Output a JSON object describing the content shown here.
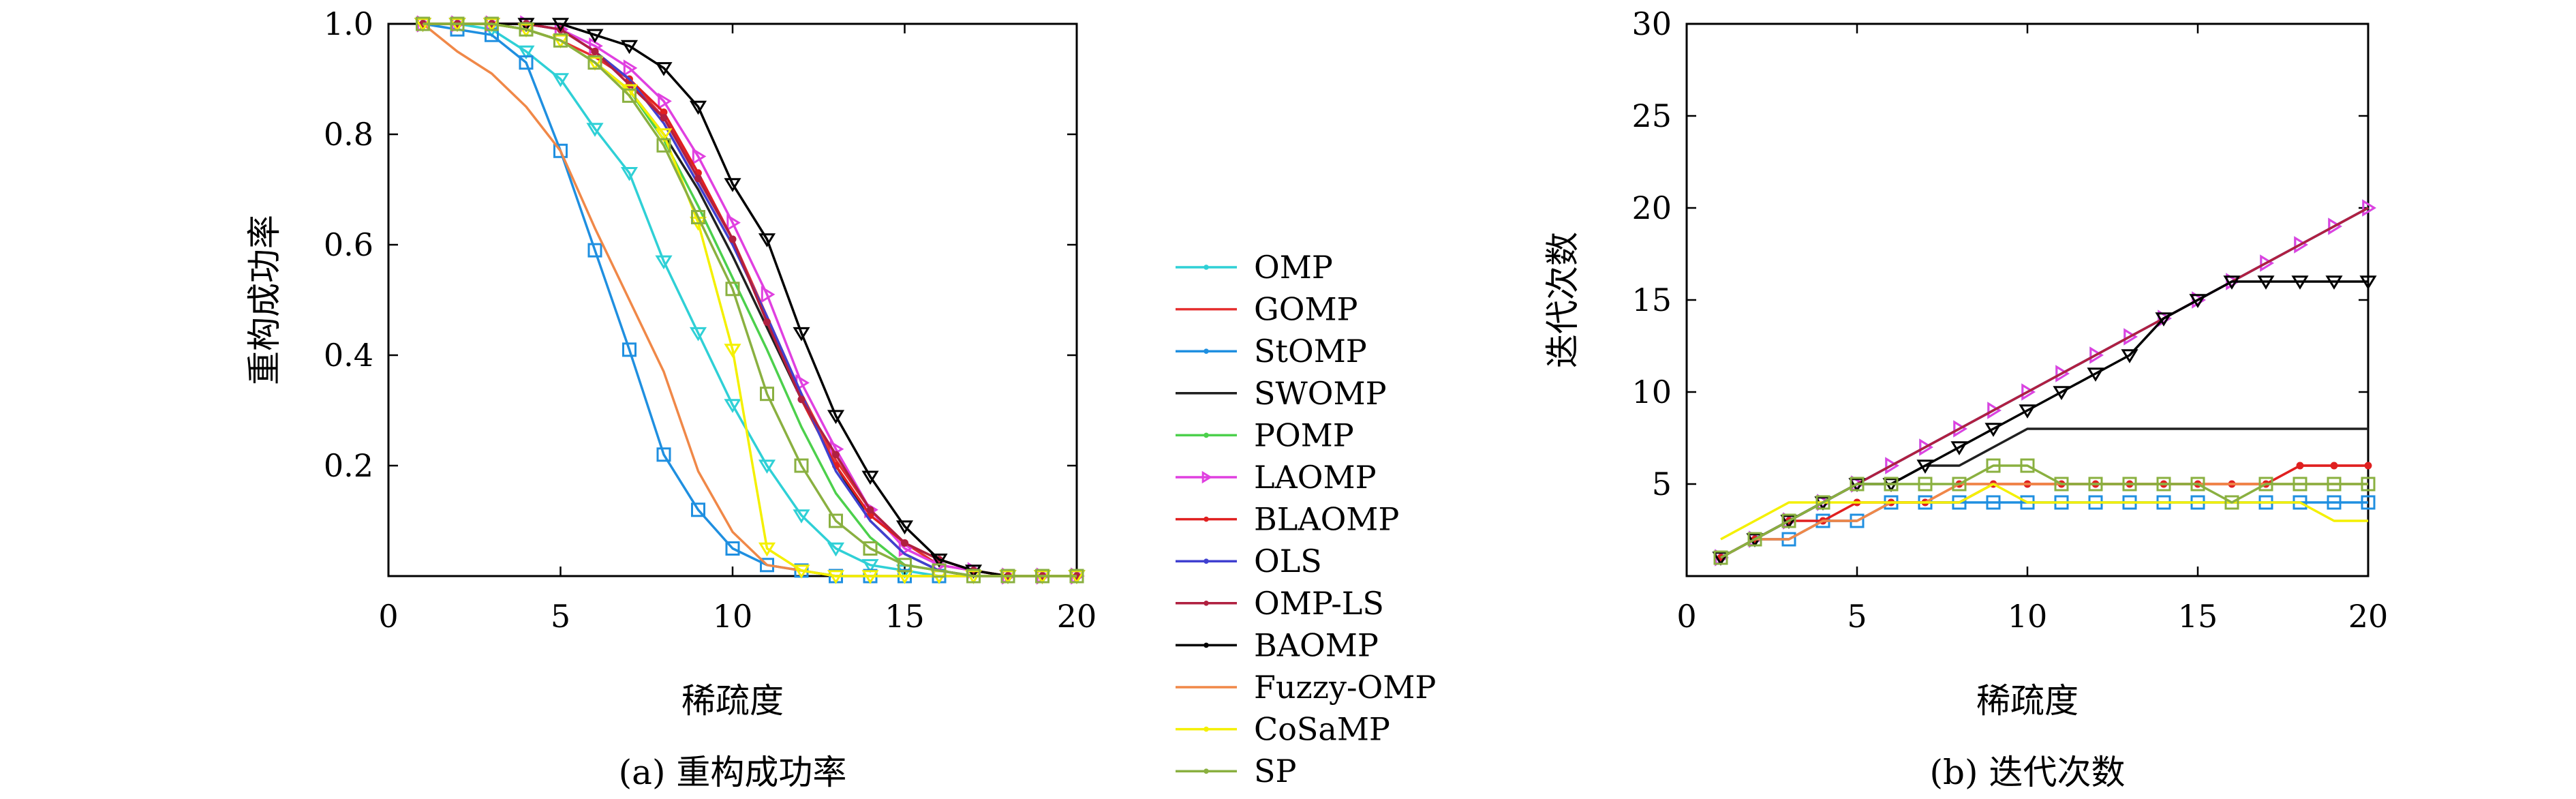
{
  "legend": [
    {
      "name": "OMP",
      "color": "#2fd0d6",
      "marker": "dot"
    },
    {
      "name": "GOMP",
      "color": "#e53030",
      "marker": "none"
    },
    {
      "name": "StOMP",
      "color": "#1f8fe0",
      "marker": "dot"
    },
    {
      "name": "SWOMP",
      "color": "#202020",
      "marker": "none"
    },
    {
      "name": "POMP",
      "color": "#4cd04c",
      "marker": "dot"
    },
    {
      "name": "LAOMP",
      "color": "#e040e0",
      "marker": "triangle-right"
    },
    {
      "name": "BLAOMP",
      "color": "#e02020",
      "marker": "dot"
    },
    {
      "name": "OLS",
      "color": "#4040d0",
      "marker": "dot"
    },
    {
      "name": "OMP-LS",
      "color": "#b02040",
      "marker": "dot"
    },
    {
      "name": "BAOMP",
      "color": "#000000",
      "marker": "dot"
    },
    {
      "name": "Fuzzy-OMP",
      "color": "#f08848",
      "marker": "none"
    },
    {
      "name": "CoSaMP",
      "color": "#f4f000",
      "marker": "dot"
    },
    {
      "name": "SP",
      "color": "#8ab040",
      "marker": "dot"
    }
  ],
  "chart_data": [
    {
      "type": "line",
      "caption": "(a) 重构成功率",
      "xlabel": "稀疏度",
      "ylabel": "重构成功率",
      "xlim": [
        0,
        20
      ],
      "ylim": [
        0,
        1.0
      ],
      "xticks": [
        "0",
        "5",
        "10",
        "15",
        "20"
      ],
      "yticks": [
        "0.2",
        "0.4",
        "0.6",
        "0.8",
        "1.0"
      ],
      "x": [
        1,
        2,
        3,
        4,
        5,
        6,
        7,
        8,
        9,
        10,
        11,
        12,
        13,
        14,
        15,
        16,
        17,
        18,
        19,
        20
      ],
      "series": [
        {
          "name": "OMP",
          "marker": "triangle-down",
          "values": [
            1.0,
            1.0,
            0.99,
            0.95,
            0.9,
            0.81,
            0.73,
            0.57,
            0.44,
            0.31,
            0.2,
            0.11,
            0.05,
            0.02,
            0.01,
            0.0,
            0.0,
            0.0,
            0.0,
            0.0
          ]
        },
        {
          "name": "GOMP",
          "marker": "none",
          "values": [
            1.0,
            1.0,
            1.0,
            0.99,
            0.97,
            0.94,
            0.9,
            0.83,
            0.73,
            0.61,
            0.47,
            0.33,
            0.21,
            0.12,
            0.06,
            0.02,
            0.01,
            0.0,
            0.0,
            0.0
          ]
        },
        {
          "name": "StOMP",
          "marker": "square",
          "values": [
            1.0,
            0.99,
            0.98,
            0.93,
            0.77,
            0.59,
            0.41,
            0.22,
            0.12,
            0.05,
            0.02,
            0.01,
            0.0,
            0.0,
            0.0,
            0.0,
            0.0,
            0.0,
            0.0,
            0.0
          ]
        },
        {
          "name": "SWOMP",
          "marker": "none",
          "values": [
            1.0,
            1.0,
            1.0,
            0.99,
            0.97,
            0.93,
            0.88,
            0.8,
            0.7,
            0.58,
            0.45,
            0.32,
            0.2,
            0.1,
            0.04,
            0.01,
            0.0,
            0.0,
            0.0,
            0.0
          ]
        },
        {
          "name": "POMP",
          "marker": "none",
          "values": [
            1.0,
            1.0,
            1.0,
            0.99,
            0.97,
            0.93,
            0.88,
            0.79,
            0.67,
            0.54,
            0.41,
            0.27,
            0.15,
            0.07,
            0.02,
            0.01,
            0.0,
            0.0,
            0.0,
            0.0
          ]
        },
        {
          "name": "LAOMP",
          "marker": "triangle-right",
          "values": [
            1.0,
            1.0,
            1.0,
            1.0,
            0.99,
            0.96,
            0.92,
            0.86,
            0.76,
            0.64,
            0.51,
            0.35,
            0.23,
            0.12,
            0.05,
            0.02,
            0.01,
            0.0,
            0.0,
            0.0
          ]
        },
        {
          "name": "BLAOMP",
          "marker": "dot",
          "values": [
            1.0,
            1.0,
            1.0,
            1.0,
            0.99,
            0.95,
            0.9,
            0.84,
            0.73,
            0.61,
            0.46,
            0.32,
            0.2,
            0.11,
            0.06,
            0.03,
            0.01,
            0.0,
            0.0,
            0.0
          ]
        },
        {
          "name": "OLS",
          "marker": "none",
          "values": [
            1.0,
            1.0,
            1.0,
            1.0,
            0.99,
            0.95,
            0.9,
            0.82,
            0.71,
            0.6,
            0.47,
            0.33,
            0.19,
            0.1,
            0.04,
            0.01,
            0.0,
            0.0,
            0.0,
            0.0
          ]
        },
        {
          "name": "OMP-LS",
          "marker": "dot",
          "values": [
            1.0,
            1.0,
            1.0,
            1.0,
            0.99,
            0.95,
            0.89,
            0.83,
            0.72,
            0.61,
            0.46,
            0.32,
            0.22,
            0.12,
            0.06,
            0.03,
            0.01,
            0.0,
            0.0,
            0.0
          ]
        },
        {
          "name": "BAOMP",
          "marker": "triangle-down",
          "values": [
            1.0,
            1.0,
            1.0,
            1.0,
            1.0,
            0.98,
            0.96,
            0.92,
            0.85,
            0.71,
            0.61,
            0.44,
            0.29,
            0.18,
            0.09,
            0.03,
            0.01,
            0.0,
            0.0,
            0.0
          ]
        },
        {
          "name": "Fuzzy-OMP",
          "marker": "none",
          "values": [
            1.0,
            0.95,
            0.91,
            0.85,
            0.77,
            0.63,
            0.5,
            0.37,
            0.19,
            0.08,
            0.02,
            0.01,
            0.0,
            0.0,
            0.0,
            0.0,
            0.0,
            0.0,
            0.0,
            0.0
          ]
        },
        {
          "name": "CoSaMP",
          "marker": "triangle-down",
          "values": [
            1.0,
            1.0,
            1.0,
            0.99,
            0.97,
            0.93,
            0.88,
            0.8,
            0.64,
            0.41,
            0.05,
            0.01,
            0.0,
            0.0,
            0.0,
            0.0,
            0.0,
            0.0,
            0.0,
            0.0
          ]
        },
        {
          "name": "SP",
          "marker": "square",
          "values": [
            1.0,
            1.0,
            1.0,
            0.99,
            0.97,
            0.93,
            0.87,
            0.78,
            0.65,
            0.52,
            0.33,
            0.2,
            0.1,
            0.05,
            0.02,
            0.01,
            0.0,
            0.0,
            0.0,
            0.0
          ]
        }
      ]
    },
    {
      "type": "line",
      "caption": "(b) 迭代次数",
      "xlabel": "稀疏度",
      "ylabel": "迭代次数",
      "xlim": [
        0,
        20
      ],
      "ylim": [
        0,
        30
      ],
      "xticks": [
        "0",
        "5",
        "10",
        "15",
        "20"
      ],
      "yticks": [
        "5",
        "10",
        "15",
        "20",
        "25",
        "30"
      ],
      "x": [
        1,
        2,
        3,
        4,
        5,
        6,
        7,
        8,
        9,
        10,
        11,
        12,
        13,
        14,
        15,
        16,
        17,
        18,
        19,
        20
      ],
      "series": [
        {
          "name": "OMP",
          "marker": "triangle-right",
          "values": [
            1,
            2,
            3,
            4,
            5,
            6,
            7,
            8,
            9,
            10,
            11,
            12,
            13,
            14,
            15,
            16,
            17,
            18,
            19,
            20
          ]
        },
        {
          "name": "GOMP",
          "marker": "none",
          "values": [
            1,
            2,
            2,
            3,
            3,
            4,
            4,
            4,
            5,
            5,
            5,
            5,
            5,
            5,
            5,
            5,
            5,
            6,
            6,
            6
          ]
        },
        {
          "name": "StOMP",
          "marker": "square",
          "values": [
            1,
            2,
            2,
            3,
            3,
            4,
            4,
            4,
            4,
            4,
            4,
            4,
            4,
            4,
            4,
            4,
            4,
            4,
            4,
            4
          ]
        },
        {
          "name": "SWOMP",
          "marker": "none",
          "values": [
            1,
            2,
            3,
            4,
            5,
            5,
            6,
            6,
            7,
            8,
            8,
            8,
            8,
            8,
            8,
            8,
            8,
            8,
            8,
            8
          ]
        },
        {
          "name": "POMP",
          "marker": "none",
          "values": [
            1,
            2,
            3,
            4,
            5,
            6,
            7,
            8,
            9,
            10,
            11,
            12,
            13,
            14,
            15,
            16,
            17,
            18,
            19,
            20
          ]
        },
        {
          "name": "LAOMP",
          "marker": "triangle-right",
          "values": [
            1,
            2,
            3,
            4,
            5,
            6,
            7,
            8,
            9,
            10,
            11,
            12,
            13,
            14,
            15,
            16,
            17,
            18,
            19,
            20
          ]
        },
        {
          "name": "BLAOMP",
          "marker": "dot",
          "values": [
            1,
            2,
            3,
            3,
            4,
            4,
            4,
            5,
            5,
            5,
            5,
            5,
            5,
            5,
            5,
            5,
            5,
            6,
            6,
            6
          ]
        },
        {
          "name": "OLS",
          "marker": "none",
          "values": [
            1,
            2,
            3,
            4,
            5,
            6,
            7,
            8,
            9,
            10,
            11,
            12,
            13,
            14,
            15,
            16,
            17,
            18,
            19,
            20
          ]
        },
        {
          "name": "OMP-LS",
          "marker": "none",
          "values": [
            1,
            2,
            3,
            4,
            5,
            6,
            7,
            8,
            9,
            10,
            11,
            12,
            13,
            14,
            15,
            16,
            17,
            18,
            19,
            20
          ]
        },
        {
          "name": "BAOMP",
          "marker": "triangle-down",
          "values": [
            1,
            2,
            3,
            4,
            5,
            5,
            6,
            7,
            8,
            9,
            10,
            11,
            12,
            14,
            15,
            16,
            16,
            16,
            16,
            16
          ]
        },
        {
          "name": "Fuzzy-OMP",
          "marker": "none",
          "values": [
            1,
            2,
            2,
            3,
            3,
            4,
            4,
            5,
            5,
            5,
            5,
            5,
            5,
            5,
            5,
            5,
            5,
            5,
            5,
            5
          ]
        },
        {
          "name": "CoSaMP",
          "marker": "none",
          "values": [
            2,
            3,
            4,
            4,
            4,
            4,
            4,
            4,
            5,
            4,
            4,
            4,
            4,
            4,
            4,
            4,
            4,
            4,
            3,
            3
          ]
        },
        {
          "name": "SP",
          "marker": "square",
          "values": [
            1,
            2,
            3,
            4,
            5,
            5,
            5,
            5,
            6,
            6,
            5,
            5,
            5,
            5,
            5,
            4,
            5,
            5,
            5,
            5
          ]
        }
      ]
    }
  ]
}
